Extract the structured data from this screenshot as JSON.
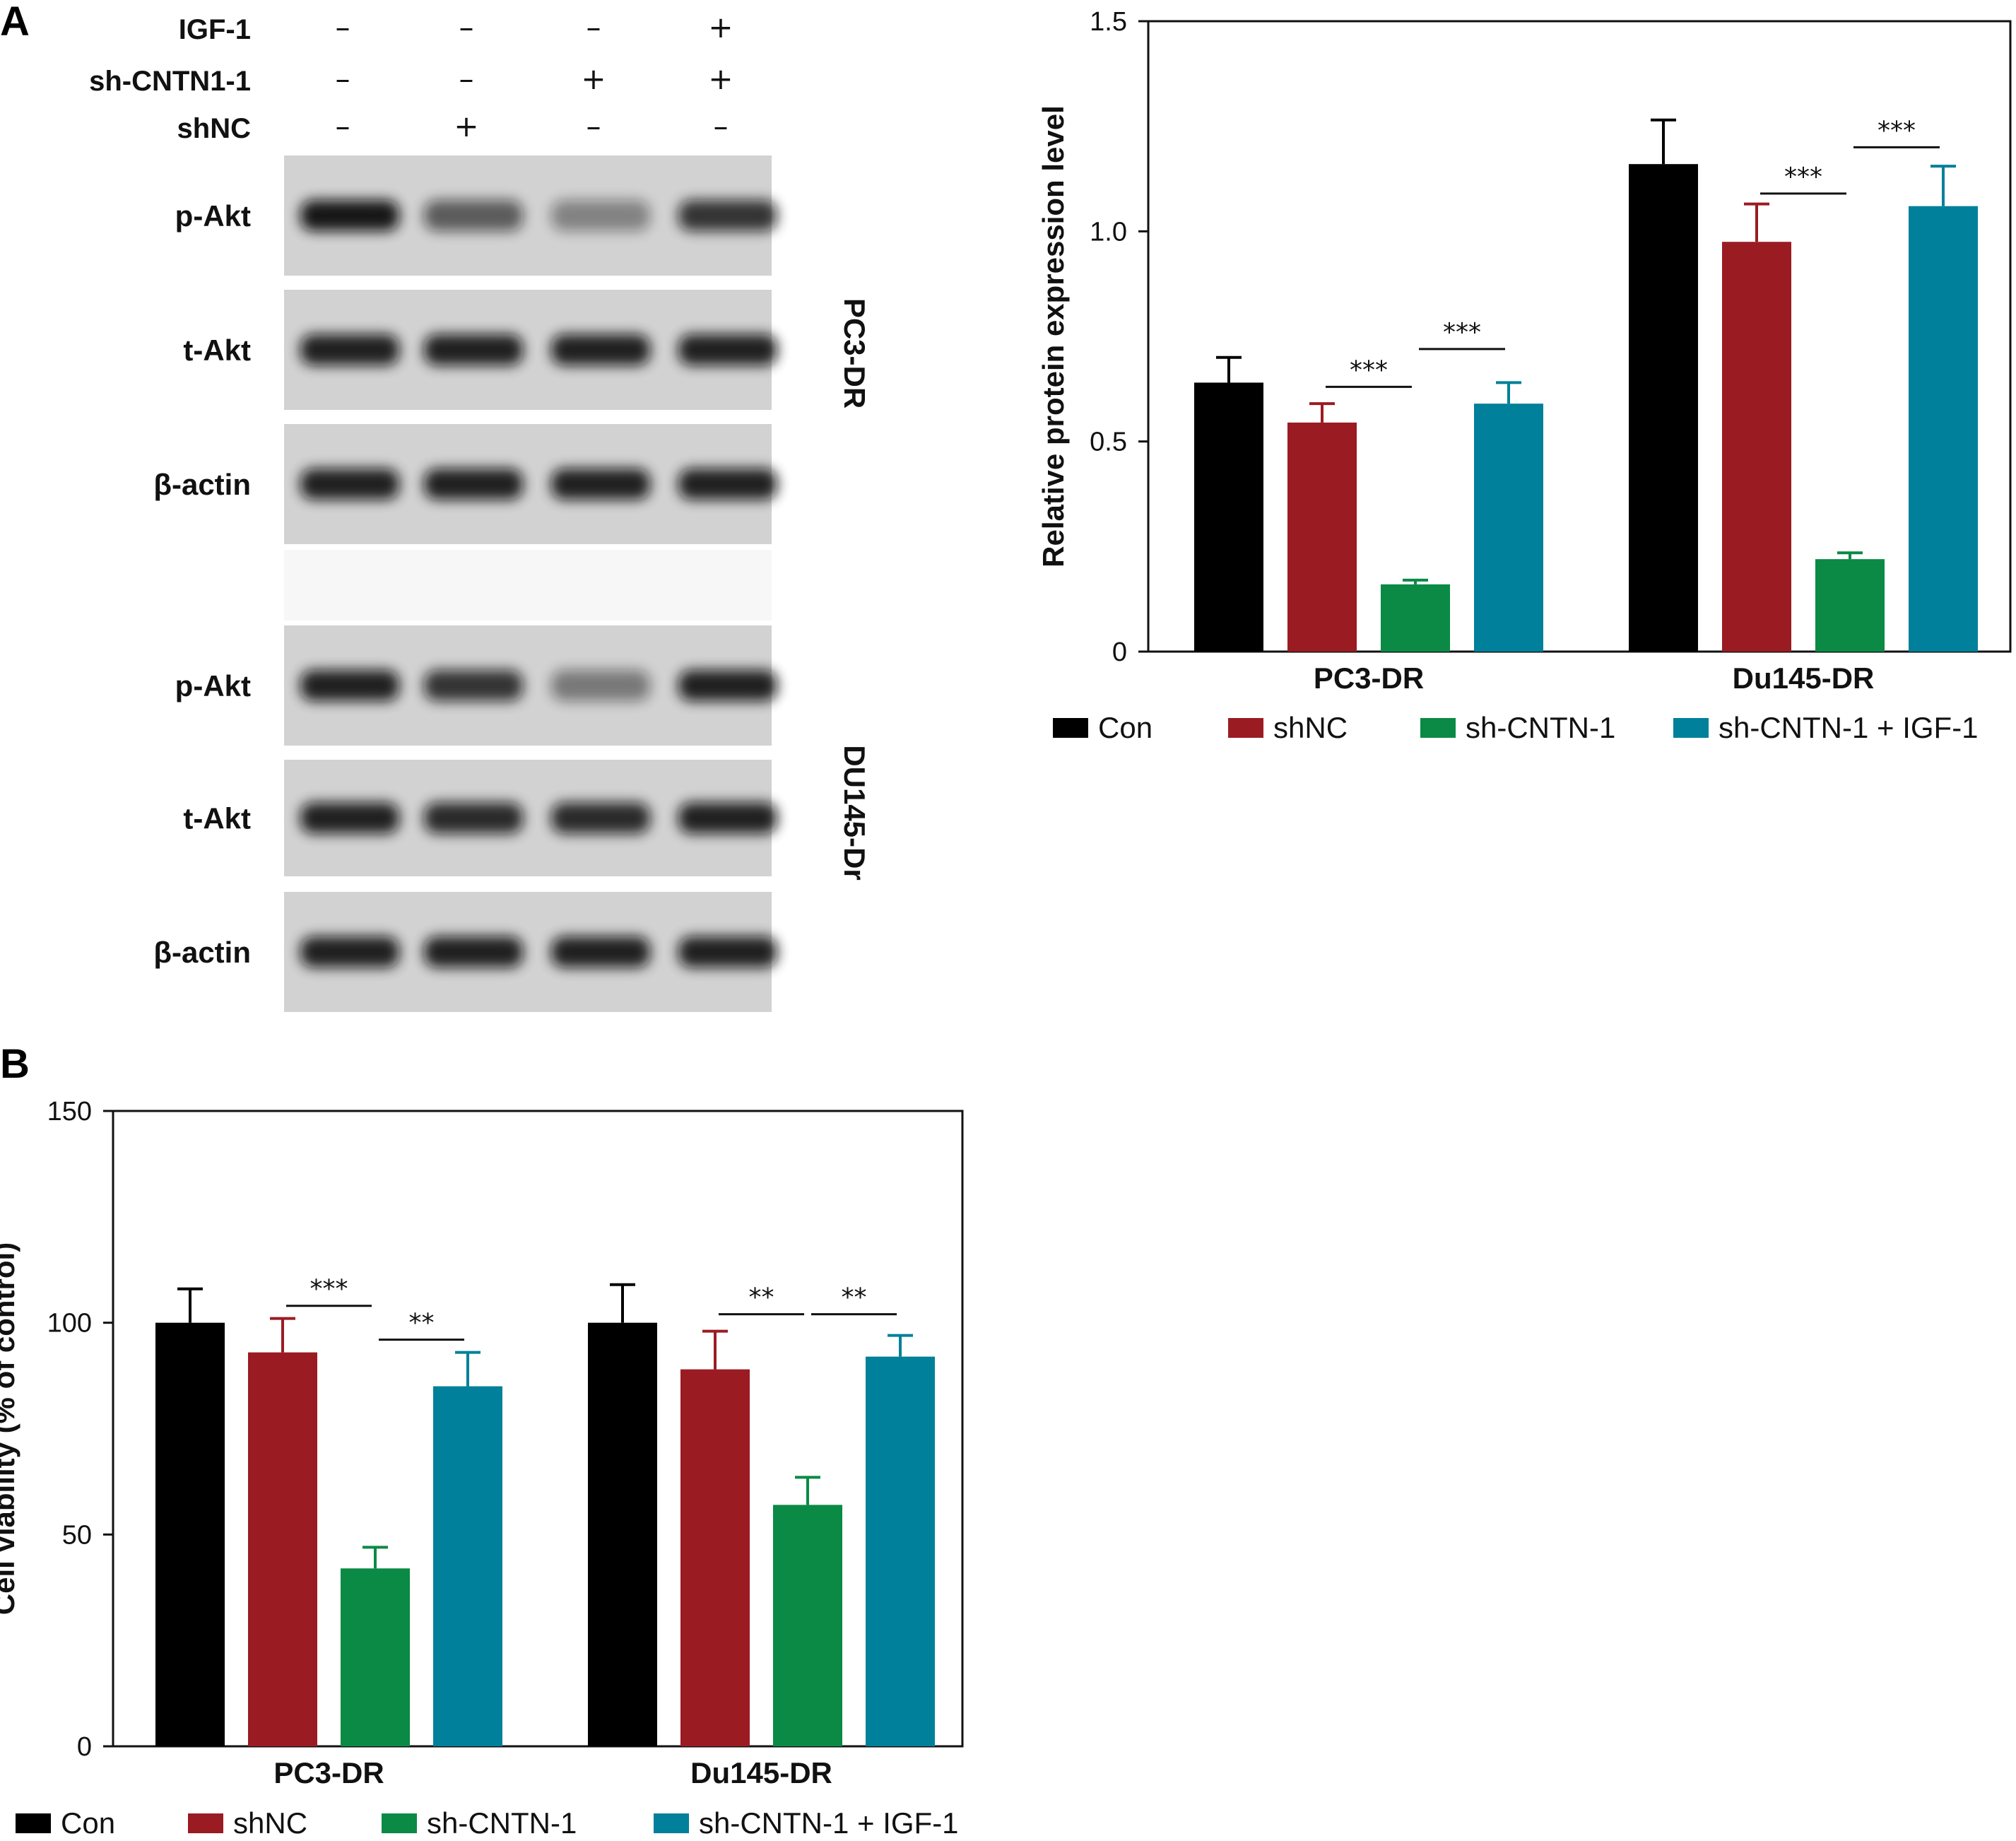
{
  "panel_a": {
    "letter": "A",
    "conditions": [
      {
        "label": "IGF-1",
        "signs": [
          "–",
          "–",
          "–",
          "+"
        ]
      },
      {
        "label": "sh-CNTN1-1",
        "signs": [
          "–",
          "–",
          "+",
          "+"
        ]
      },
      {
        "label": "shNC",
        "signs": [
          "–",
          "+",
          "–",
          "–"
        ]
      }
    ],
    "blots": [
      {
        "cell_line": "PC3-DR",
        "bands": [
          {
            "label": "p-Akt",
            "intensity": [
              0.95,
              0.6,
              0.4,
              0.8
            ]
          },
          {
            "label": "t-Akt",
            "intensity": [
              0.9,
              0.9,
              0.9,
              0.9
            ]
          },
          {
            "label": "β-actin",
            "intensity": [
              0.9,
              0.9,
              0.9,
              0.9
            ]
          }
        ]
      },
      {
        "cell_line": "DU145-Dr",
        "bands": [
          {
            "label": "p-Akt",
            "intensity": [
              0.9,
              0.8,
              0.45,
              0.9
            ]
          },
          {
            "label": "t-Akt",
            "intensity": [
              0.9,
              0.85,
              0.85,
              0.9
            ]
          },
          {
            "label": "β-actin",
            "intensity": [
              0.9,
              0.9,
              0.9,
              0.9
            ]
          }
        ]
      }
    ]
  },
  "panel_b": {
    "letter": "B"
  },
  "colors": {
    "Con": "#000000",
    "shNC": "#9b1b22",
    "sh-CNTN-1": "#0a8a45",
    "sh-CNTN-1 + IGF-1": "#00809a",
    "blot_bg": "#d2d2d2",
    "band": "#111111"
  },
  "chart_data": [
    {
      "type": "bar",
      "ylabel": "Relative protein expression level",
      "ylim": [
        0,
        1.5
      ],
      "yticks": [
        "0",
        "0.5",
        "1.0",
        "1.5"
      ],
      "categories": [
        "PC3-DR",
        "Du145-DR"
      ],
      "series": [
        {
          "name": "Con",
          "values": [
            0.64,
            1.16
          ],
          "errors": [
            0.06,
            0.105
          ]
        },
        {
          "name": "shNC",
          "values": [
            0.545,
            0.975
          ],
          "errors": [
            0.045,
            0.09
          ]
        },
        {
          "name": "sh-CNTN-1",
          "values": [
            0.16,
            0.22
          ],
          "errors": [
            0.01,
            0.015
          ]
        },
        {
          "name": "sh-CNTN-1 + IGF-1",
          "values": [
            0.59,
            1.06
          ],
          "errors": [
            0.05,
            0.095
          ]
        }
      ],
      "significance": [
        {
          "label": "***",
          "category": 0,
          "from": 1,
          "to": 2,
          "y": 0.63
        },
        {
          "label": "***",
          "category": 0,
          "from": 2,
          "to": 3,
          "y": 0.72
        },
        {
          "label": "***",
          "category": 1,
          "from": 1,
          "to": 2,
          "y": 1.09
        },
        {
          "label": "***",
          "category": 1,
          "from": 2,
          "to": 3,
          "y": 1.2
        }
      ],
      "legend": [
        "Con",
        "shNC",
        "sh-CNTN-1",
        "sh-CNTN-1 + IGF-1"
      ],
      "legend_position": "bottom"
    },
    {
      "type": "bar",
      "ylabel": "Cell viability (% of control)",
      "ylim": [
        0,
        150
      ],
      "yticks": [
        "0",
        "50",
        "100",
        "150"
      ],
      "categories": [
        "PC3-DR",
        "Du145-DR"
      ],
      "series": [
        {
          "name": "Con",
          "values": [
            100,
            100
          ],
          "errors": [
            8,
            9
          ]
        },
        {
          "name": "shNC",
          "values": [
            93,
            89
          ],
          "errors": [
            8,
            9
          ]
        },
        {
          "name": "sh-CNTN-1",
          "values": [
            42,
            57
          ],
          "errors": [
            5,
            6.5
          ]
        },
        {
          "name": "sh-CNTN-1 + IGF-1",
          "values": [
            85,
            92
          ],
          "errors": [
            8,
            5
          ]
        }
      ],
      "significance": [
        {
          "label": "***",
          "category": 0,
          "from": 1,
          "to": 2,
          "y": 104
        },
        {
          "label": "**",
          "category": 0,
          "from": 2,
          "to": 3,
          "y": 96
        },
        {
          "label": "**",
          "category": 1,
          "from": 1,
          "to": 2,
          "y": 102
        },
        {
          "label": "**",
          "category": 1,
          "from": 2,
          "to": 3,
          "y": 102
        }
      ],
      "legend": [
        "Con",
        "shNC",
        "sh-CNTN-1",
        "sh-CNTN-1 + IGF-1"
      ],
      "legend_position": "bottom"
    }
  ]
}
